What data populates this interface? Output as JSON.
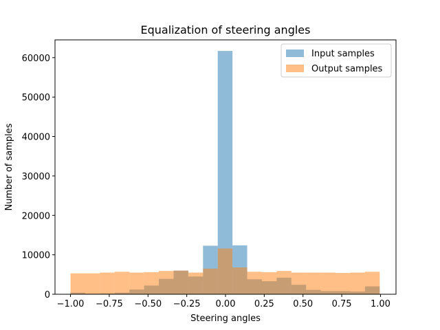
{
  "chart_data": {
    "type": "bar",
    "title": "Equalization of steering angles",
    "xlabel": "Steering angles",
    "ylabel": "Number of samples",
    "xlim": [
      -1.1,
      1.1
    ],
    "ylim": [
      0,
      64500
    ],
    "xticks": [
      -1.0,
      -0.75,
      -0.5,
      -0.25,
      0.0,
      0.25,
      0.5,
      0.75,
      1.0
    ],
    "xtick_labels": [
      "−1.00",
      "−0.75",
      "−0.50",
      "−0.25",
      "0.00",
      "0.25",
      "0.50",
      "0.75",
      "1.00"
    ],
    "yticks": [
      0,
      10000,
      20000,
      30000,
      40000,
      50000,
      60000
    ],
    "ytick_labels": [
      "0",
      "10000",
      "20000",
      "30000",
      "40000",
      "50000",
      "60000"
    ],
    "grid": false,
    "legend_position": "top-right",
    "bin_edges": [
      -1.0,
      -0.905,
      -0.81,
      -0.715,
      -0.62,
      -0.525,
      -0.43,
      -0.335,
      -0.24,
      -0.145,
      -0.05,
      0.045,
      0.14,
      0.235,
      0.33,
      0.425,
      0.52,
      0.615,
      0.71,
      0.805,
      0.9,
      0.995
    ],
    "series": [
      {
        "name": "Input samples",
        "color": "#1f77b4",
        "opacity": 0.5,
        "values": [
          400,
          150,
          200,
          400,
          1200,
          2200,
          3900,
          6000,
          4500,
          12300,
          61700,
          12400,
          3800,
          3300,
          4200,
          2400,
          1100,
          800,
          800,
          700,
          2000
        ]
      },
      {
        "name": "Output samples",
        "color": "#ff7f0e",
        "opacity": 0.5,
        "values": [
          5300,
          5300,
          5500,
          5700,
          5500,
          5600,
          5900,
          6000,
          5500,
          6500,
          11600,
          6800,
          5700,
          5600,
          5900,
          5500,
          5500,
          5500,
          5400,
          5500,
          5700
        ]
      }
    ]
  }
}
